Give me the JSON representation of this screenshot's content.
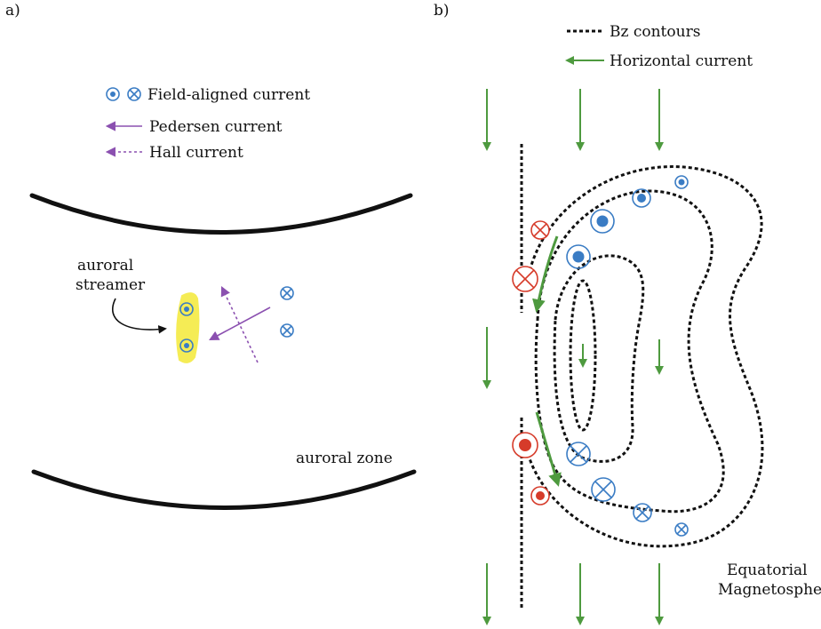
{
  "panel_a": {
    "label": "a)",
    "legend": {
      "field_aligned": "Field-aligned current",
      "pedersen": "Pedersen current",
      "hall": "Hall current"
    },
    "streamer_label_line1": "auroral",
    "streamer_label_line2": "streamer",
    "zone_label": "auroral zone"
  },
  "panel_b": {
    "label": "b)",
    "legend": {
      "bz_contours": "Bz contours",
      "horizontal_current": "Horizontal current"
    },
    "region_label_line1": "Equatorial",
    "region_label_line2": "Magnetosphere"
  },
  "colors": {
    "outward_current_blue": "#3a7cc4",
    "inward_current_red": "#d63b2a",
    "pedersen_hall_purple": "#8b50b0",
    "horizontal_green": "#4e9a3f",
    "streamer_yellow": "#f5ec55",
    "line_black": "#111111"
  }
}
